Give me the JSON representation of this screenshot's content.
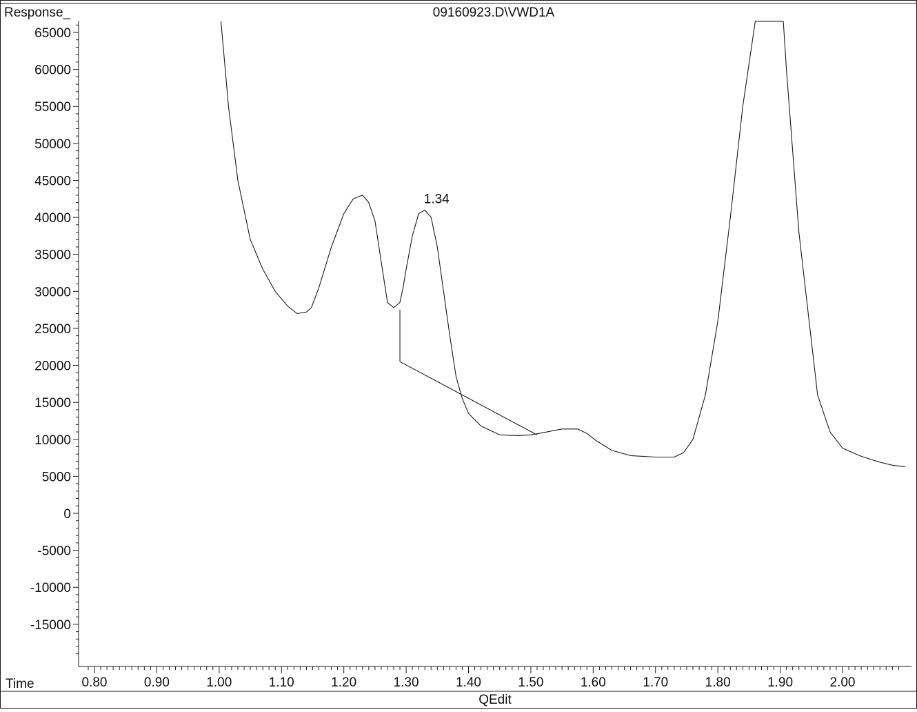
{
  "header": {
    "ylabel": "Response_",
    "title": "09160923.D\\VWD1A"
  },
  "footer": {
    "xlabel": "Time",
    "caption": "QEdit"
  },
  "colors": {
    "trace": "#1a1a1a",
    "axis": "#1a1a1a",
    "background": "#ffffff"
  },
  "chart_data": {
    "type": "line",
    "title": "09160923.D\\VWD1A",
    "xlabel": "Time",
    "ylabel": "Response_",
    "xlim": [
      0.785,
      2.105
    ],
    "ylim": [
      -20000,
      66500
    ],
    "grid": false,
    "x_ticks": [
      0.8,
      0.9,
      1.0,
      1.1,
      1.2,
      1.3,
      1.4,
      1.5,
      1.6,
      1.7,
      1.8,
      1.9,
      2.0
    ],
    "x_tick_labels": [
      "0.80",
      "0.90",
      "1.00",
      "1.10",
      "1.20",
      "1.30",
      "1.40",
      "1.50",
      "1.60",
      "1.70",
      "1.80",
      "1.90",
      "2.00"
    ],
    "y_ticks": [
      65000,
      60000,
      55000,
      50000,
      45000,
      40000,
      35000,
      30000,
      25000,
      20000,
      15000,
      10000,
      5000,
      0,
      -5000,
      -10000,
      -15000
    ],
    "y_tick_labels": [
      "65000",
      "60000",
      "55000",
      "50000",
      "45000",
      "40000",
      "35000",
      "30000",
      "25000",
      "20000",
      "15000",
      "10000",
      "5000",
      "0",
      "-5000",
      "-10000",
      "-15000"
    ],
    "series": [
      {
        "x": [
          1.003,
          1.015,
          1.03,
          1.05,
          1.07,
          1.09,
          1.11,
          1.125,
          1.14,
          1.148,
          1.16,
          1.18,
          1.2,
          1.215,
          1.23,
          1.24,
          1.25,
          1.26,
          1.27,
          1.28,
          1.29,
          1.295,
          1.3,
          1.31,
          1.32,
          1.33,
          1.34,
          1.35,
          1.36,
          1.37,
          1.38,
          1.39,
          1.4,
          1.42,
          1.45,
          1.48,
          1.5,
          1.52,
          1.55,
          1.575,
          1.59,
          1.605,
          1.63,
          1.66,
          1.7,
          1.73,
          1.745,
          1.76,
          1.78,
          1.8,
          1.82,
          1.84,
          1.86,
          1.863,
          1.905,
          1.91,
          1.93,
          1.96,
          1.98,
          2.0,
          2.03,
          2.06,
          2.08,
          2.1
        ],
        "y": [
          66500,
          55000,
          45000,
          37000,
          33000,
          30000,
          28000,
          27000,
          27200,
          27800,
          30500,
          36000,
          40500,
          42500,
          43000,
          42000,
          39500,
          34000,
          28500,
          27800,
          28500,
          30500,
          33000,
          37500,
          40500,
          41000,
          40000,
          36000,
          30000,
          24000,
          18500,
          15500,
          13500,
          11800,
          10600,
          10500,
          10600,
          10900,
          11400,
          11400,
          10800,
          9800,
          8500,
          7800,
          7600,
          7600,
          8200,
          10000,
          16000,
          26000,
          40000,
          55000,
          66500,
          66500,
          66500,
          60000,
          38000,
          16000,
          11000,
          8800,
          7700,
          6900,
          6500,
          6300
        ]
      }
    ],
    "baseline": {
      "x": [
        1.29,
        1.51
      ],
      "y": [
        20500,
        10600
      ],
      "drop_line_top": 27500
    },
    "annotations": [
      {
        "text": "1.34",
        "x": 1.34,
        "y": 41000
      }
    ]
  }
}
